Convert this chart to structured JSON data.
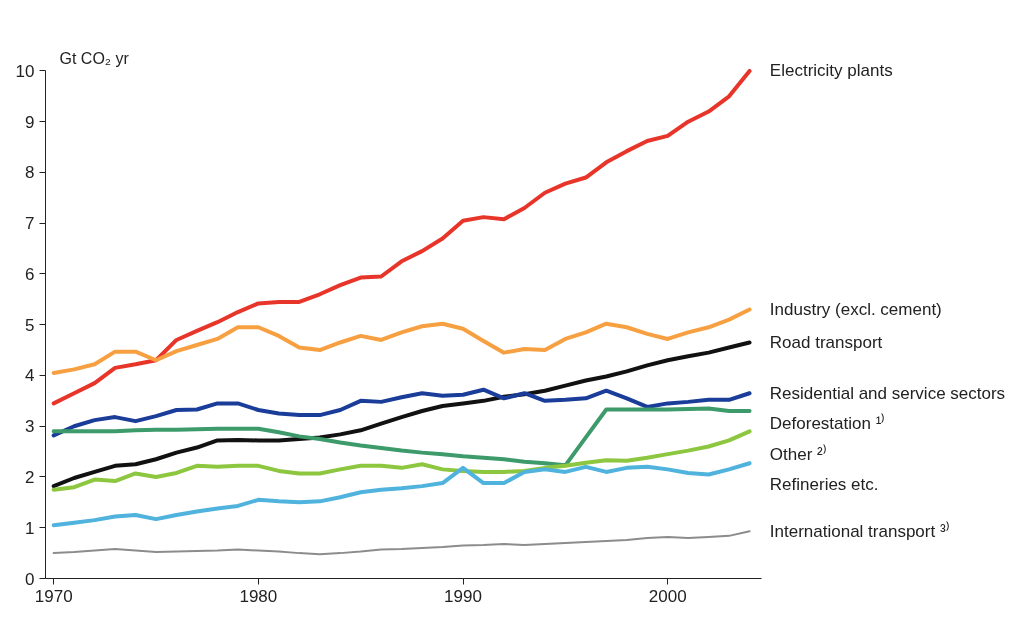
{
  "chart_data": {
    "type": "line",
    "ylabel": "Gt CO₂ yr",
    "x": [
      1970,
      1971,
      1972,
      1973,
      1974,
      1975,
      1976,
      1977,
      1978,
      1979,
      1980,
      1981,
      1982,
      1983,
      1984,
      1985,
      1986,
      1987,
      1988,
      1989,
      1990,
      1991,
      1992,
      1993,
      1994,
      1995,
      1996,
      1997,
      1998,
      1999,
      2000,
      2001,
      2002,
      2003,
      2004
    ],
    "series": [
      {
        "name": "Electricity plants",
        "color": "#e8352a",
        "values": [
          3.45,
          3.65,
          3.85,
          4.15,
          4.22,
          4.3,
          4.7,
          4.88,
          5.05,
          5.25,
          5.42,
          5.45,
          5.45,
          5.6,
          5.78,
          5.93,
          5.95,
          6.25,
          6.45,
          6.7,
          7.05,
          7.12,
          7.08,
          7.3,
          7.6,
          7.78,
          7.9,
          8.2,
          8.42,
          8.62,
          8.72,
          9.0,
          9.2,
          9.5,
          10.0
        ]
      },
      {
        "name": "Industry (excl. cement)",
        "color": "#f7a042",
        "values": [
          4.05,
          4.12,
          4.22,
          4.47,
          4.47,
          4.3,
          4.48,
          4.6,
          4.72,
          4.95,
          4.95,
          4.78,
          4.55,
          4.5,
          4.65,
          4.78,
          4.7,
          4.85,
          4.97,
          5.02,
          4.92,
          4.68,
          4.45,
          4.52,
          4.5,
          4.72,
          4.85,
          5.02,
          4.95,
          4.82,
          4.72,
          4.85,
          4.95,
          5.1,
          5.3
        ]
      },
      {
        "name": "Road transport",
        "color": "#111111",
        "values": [
          1.82,
          1.98,
          2.1,
          2.22,
          2.25,
          2.35,
          2.48,
          2.58,
          2.72,
          2.73,
          2.72,
          2.72,
          2.75,
          2.78,
          2.84,
          2.92,
          3.05,
          3.18,
          3.3,
          3.4,
          3.45,
          3.5,
          3.58,
          3.63,
          3.7,
          3.8,
          3.9,
          3.98,
          4.08,
          4.2,
          4.3,
          4.38,
          4.45,
          4.55,
          4.65
        ]
      },
      {
        "name": "Residential and service sectors",
        "color": "#1a3d9a",
        "values": [
          2.82,
          3.0,
          3.12,
          3.18,
          3.1,
          3.2,
          3.32,
          3.33,
          3.45,
          3.45,
          3.32,
          3.25,
          3.22,
          3.22,
          3.32,
          3.5,
          3.48,
          3.57,
          3.65,
          3.6,
          3.62,
          3.72,
          3.55,
          3.65,
          3.5,
          3.52,
          3.55,
          3.7,
          3.55,
          3.38,
          3.45,
          3.48,
          3.52,
          3.52,
          3.65
        ]
      },
      {
        "name": "Deforestation ¹⁾",
        "color": "#3d9a6a",
        "values": [
          2.9,
          2.9,
          2.9,
          2.9,
          2.92,
          2.93,
          2.93,
          2.94,
          2.95,
          2.95,
          2.95,
          2.88,
          2.8,
          2.75,
          2.68,
          2.62,
          2.57,
          2.52,
          2.48,
          2.45,
          2.41,
          2.38,
          2.35,
          2.3,
          2.27,
          2.23,
          2.78,
          3.33,
          3.33,
          3.33,
          3.33,
          3.34,
          3.35,
          3.3,
          3.3
        ]
      },
      {
        "name": "Other ²⁾",
        "color": "#8dc63f",
        "values": [
          1.75,
          1.8,
          1.95,
          1.92,
          2.07,
          2.0,
          2.08,
          2.22,
          2.2,
          2.22,
          2.22,
          2.12,
          2.07,
          2.07,
          2.15,
          2.22,
          2.22,
          2.18,
          2.25,
          2.15,
          2.12,
          2.1,
          2.1,
          2.12,
          2.18,
          2.22,
          2.28,
          2.33,
          2.32,
          2.38,
          2.45,
          2.52,
          2.6,
          2.72,
          2.9
        ]
      },
      {
        "name": "Refineries etc.",
        "color": "#4fb3dd",
        "values": [
          1.05,
          1.1,
          1.15,
          1.22,
          1.25,
          1.17,
          1.25,
          1.32,
          1.38,
          1.43,
          1.55,
          1.52,
          1.5,
          1.52,
          1.6,
          1.7,
          1.75,
          1.78,
          1.82,
          1.88,
          2.18,
          1.88,
          1.88,
          2.1,
          2.15,
          2.1,
          2.2,
          2.1,
          2.18,
          2.2,
          2.15,
          2.08,
          2.05,
          2.15,
          2.27
        ]
      },
      {
        "name": "International transport ³⁾",
        "color": "#8c8c8c",
        "values": [
          0.5,
          0.52,
          0.55,
          0.58,
          0.55,
          0.52,
          0.53,
          0.54,
          0.55,
          0.57,
          0.55,
          0.53,
          0.5,
          0.48,
          0.5,
          0.53,
          0.57,
          0.58,
          0.6,
          0.62,
          0.65,
          0.66,
          0.68,
          0.66,
          0.68,
          0.7,
          0.72,
          0.74,
          0.76,
          0.8,
          0.82,
          0.8,
          0.82,
          0.84,
          0.93
        ]
      }
    ],
    "xlim": [
      1969.6,
      2004.6
    ],
    "ylim": [
      0,
      10
    ],
    "xticks": [
      1970,
      1980,
      1990,
      2000
    ],
    "yticks": [
      0,
      1,
      2,
      3,
      4,
      5,
      6,
      7,
      8,
      9,
      10
    ],
    "grid": false
  }
}
